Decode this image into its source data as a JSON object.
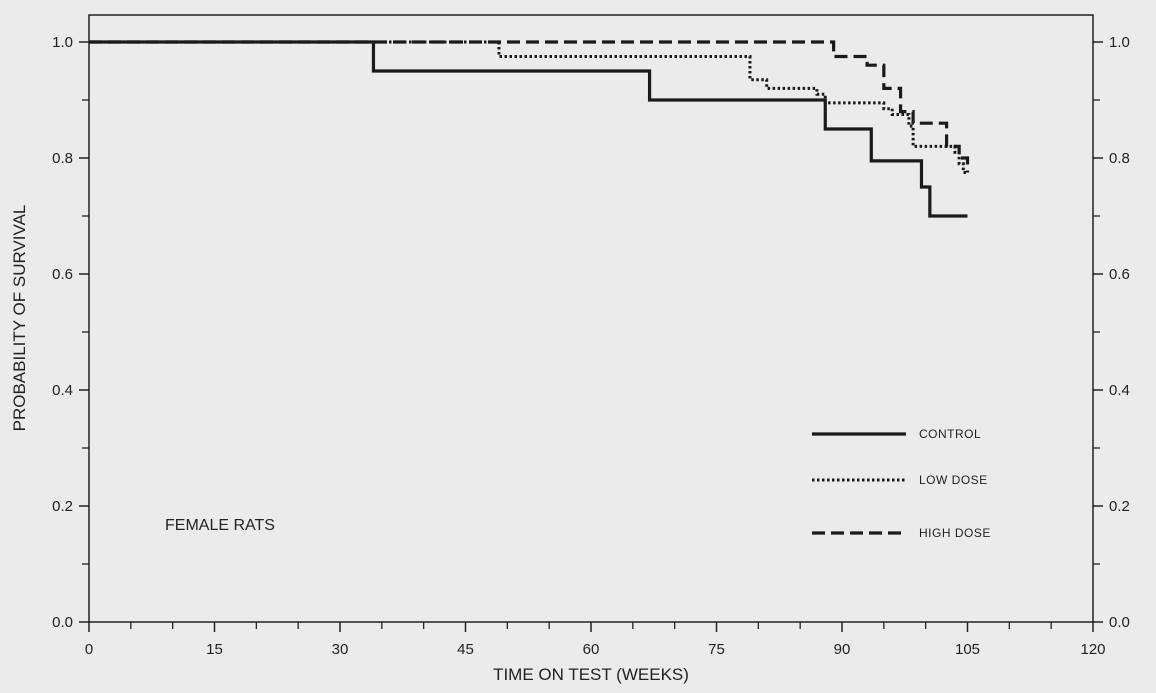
{
  "chart_data": {
    "type": "line",
    "xlabel": "TIME ON TEST (WEEKS)",
    "ylabel": "PROBABILITY OF SURVIVAL",
    "xlim": [
      0,
      120
    ],
    "ylim": [
      0.0,
      1.0
    ],
    "x_ticks": [
      "0",
      "15",
      "30",
      "45",
      "60",
      "75",
      "90",
      "105",
      "120"
    ],
    "y_ticks": [
      "0.0",
      "0.2",
      "0.4",
      "0.6",
      "0.8",
      "1.0"
    ],
    "y2_ticks": [
      "0.0",
      "0.2",
      "0.4",
      "0.6",
      "0.8",
      "1.0"
    ],
    "grid": false,
    "legend_position": "center-right",
    "annotation": "FEMALE RATS",
    "series": [
      {
        "name": "CONTROL",
        "style": "solid",
        "step_x": [
          0,
          34,
          67,
          88,
          93.5,
          99.5,
          100.5,
          105
        ],
        "step_y": [
          1.0,
          0.95,
          0.9,
          0.85,
          0.795,
          0.75,
          0.7,
          0.7
        ]
      },
      {
        "name": "LOW DOSE",
        "style": "dotted",
        "step_x": [
          0,
          34,
          49,
          79,
          81,
          87,
          88,
          95,
          96,
          98,
          98.5,
          103.5,
          104,
          104.5,
          105
        ],
        "step_y": [
          1.0,
          1.0,
          0.975,
          0.935,
          0.92,
          0.91,
          0.895,
          0.885,
          0.875,
          0.855,
          0.82,
          0.81,
          0.79,
          0.775,
          0.775
        ]
      },
      {
        "name": "HIGH DOSE",
        "style": "dashed",
        "step_x": [
          0,
          88,
          89,
          93,
          95,
          97,
          98.5,
          102.5,
          104,
          105
        ],
        "step_y": [
          1.0,
          1.0,
          0.975,
          0.96,
          0.92,
          0.88,
          0.86,
          0.82,
          0.8,
          0.775
        ]
      }
    ]
  }
}
